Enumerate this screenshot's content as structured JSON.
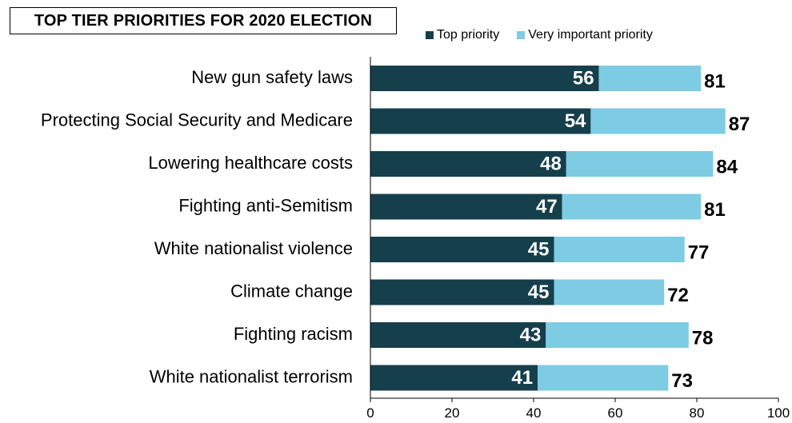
{
  "chart_data": {
    "type": "bar",
    "orientation": "horizontal",
    "stacked": true,
    "title": "TOP TIER PRIORITIES FOR 2020 ELECTION",
    "categories": [
      "New gun safety laws",
      "Protecting Social Security and Medicare",
      "Lowering healthcare costs",
      "Fighting anti-Semitism",
      "White nationalist violence",
      "Climate change",
      "Fighting racism",
      "White nationalist terrorism"
    ],
    "series": [
      {
        "name": "Top priority",
        "color": "#163f4c",
        "values": [
          56,
          54,
          48,
          47,
          45,
          45,
          43,
          41
        ]
      },
      {
        "name": "Very important priority",
        "color": "#7ecbe4",
        "values": [
          25,
          33,
          36,
          34,
          32,
          27,
          35,
          32
        ]
      }
    ],
    "totals": [
      81,
      87,
      84,
      81,
      77,
      72,
      78,
      73
    ],
    "xlim": [
      0,
      100
    ],
    "xticks": [
      0,
      20,
      40,
      60,
      80,
      100
    ],
    "legend_position": "top",
    "grid": false
  }
}
